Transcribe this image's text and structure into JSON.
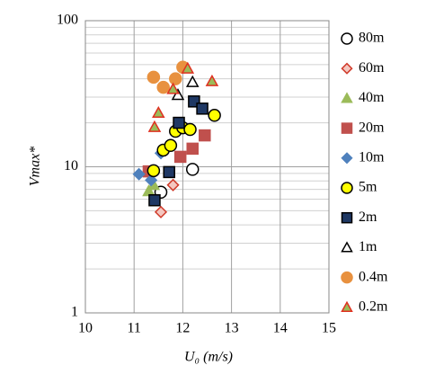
{
  "chart_data": {
    "type": "scatter",
    "x_label": "U₀ (m/s)",
    "y_label": "Vmax*",
    "xlim": [
      10,
      15
    ],
    "xticks": [
      10,
      11,
      12,
      13,
      14,
      15
    ],
    "ylim": [
      1,
      100
    ],
    "yticks": [
      1,
      10,
      100
    ],
    "y_log": true,
    "y_minor_ticks": [
      2,
      3,
      4,
      5,
      6,
      7,
      8,
      9,
      20,
      30,
      40,
      50,
      60,
      70,
      80,
      90
    ],
    "grid": true,
    "legend": "right",
    "series": [
      {
        "name": "80m",
        "marker": "circle",
        "color": "#ffffff",
        "stroke": "#000000",
        "x": [
          11.55,
          12.2
        ],
        "values": [
          6.7,
          9.6
        ]
      },
      {
        "name": "60m",
        "marker": "diamond",
        "color": "#f4c7c0",
        "stroke": "#d03a2a",
        "x": [
          11.55,
          11.8
        ],
        "values": [
          4.9,
          7.5
        ]
      },
      {
        "name": "40m",
        "marker": "triangle",
        "color": "#9bbb59",
        "stroke": "#9bbb59",
        "x": [
          11.3,
          11.4
        ],
        "values": [
          6.8,
          7.5
        ]
      },
      {
        "name": "20m",
        "marker": "square",
        "color": "#c0504d",
        "stroke": "#c0504d",
        "x": [
          11.3,
          11.95,
          12.2,
          12.45
        ],
        "values": [
          9.3,
          11.7,
          13.3,
          16.4
        ]
      },
      {
        "name": "10m",
        "marker": "diamond",
        "color": "#4f81bd",
        "stroke": "#4f81bd",
        "x": [
          11.1,
          11.35,
          11.55
        ],
        "values": [
          8.9,
          8.1,
          12.4
        ]
      },
      {
        "name": "5m",
        "marker": "circle",
        "color": "#ffff00",
        "stroke": "#000000",
        "x": [
          11.4,
          11.6,
          11.75,
          11.85,
          12.0,
          12.15,
          12.65
        ],
        "values": [
          9.4,
          13,
          14,
          17.5,
          18.5,
          18,
          22.5
        ]
      },
      {
        "name": "2m",
        "marker": "square",
        "color": "#1f3864",
        "stroke": "#000000",
        "x": [
          11.42,
          11.72,
          11.92,
          12.23,
          12.4
        ],
        "values": [
          5.9,
          9.2,
          20,
          28,
          25
        ]
      },
      {
        "name": "1m",
        "marker": "triangle",
        "color": "#ffffff",
        "stroke": "#000000",
        "x": [
          11.9,
          12.2
        ],
        "values": [
          31,
          38
        ]
      },
      {
        "name": "0.4m",
        "marker": "circle",
        "color": "#e8913f",
        "stroke": "#e8913f",
        "x": [
          11.4,
          11.6,
          11.85,
          12.0
        ],
        "values": [
          41,
          35,
          40,
          48
        ]
      },
      {
        "name": "0.2m",
        "marker": "triangle",
        "color": "#9bbb59",
        "stroke": "#e03020",
        "x": [
          11.42,
          11.5,
          11.8,
          12.1,
          12.6
        ],
        "values": [
          18.7,
          23.4,
          34,
          47,
          38.5
        ]
      }
    ]
  }
}
